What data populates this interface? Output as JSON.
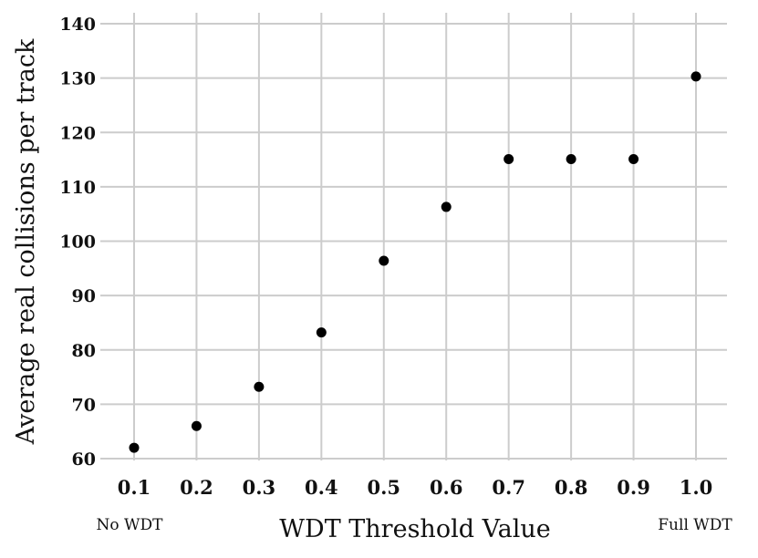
{
  "chart_data": {
    "type": "scatter",
    "xlabel": "WDT Threshold Value",
    "ylabel": "Average real collisions per track",
    "x_tick_labels": [
      "0.1",
      "0.2",
      "0.3",
      "0.4",
      "0.5",
      "0.6",
      "0.7",
      "0.8",
      "0.9",
      "1.0"
    ],
    "y_tick_labels": [
      "60",
      "70",
      "80",
      "90",
      "100",
      "110",
      "120",
      "130",
      "140"
    ],
    "x_range": [
      0.1,
      1.0
    ],
    "ylim": [
      60,
      140
    ],
    "grid": true,
    "point_color": "#000000",
    "annotations": {
      "left": "No WDT",
      "right": "Full WDT"
    },
    "series": [
      {
        "x": [
          0.1,
          0.2,
          0.3,
          0.4,
          0.5,
          0.6,
          0.7,
          0.8,
          0.9,
          1.0
        ],
        "y": [
          62.0,
          66.0,
          73.2,
          83.2,
          96.4,
          106.3,
          115.1,
          115.1,
          115.1,
          130.3
        ]
      }
    ]
  }
}
